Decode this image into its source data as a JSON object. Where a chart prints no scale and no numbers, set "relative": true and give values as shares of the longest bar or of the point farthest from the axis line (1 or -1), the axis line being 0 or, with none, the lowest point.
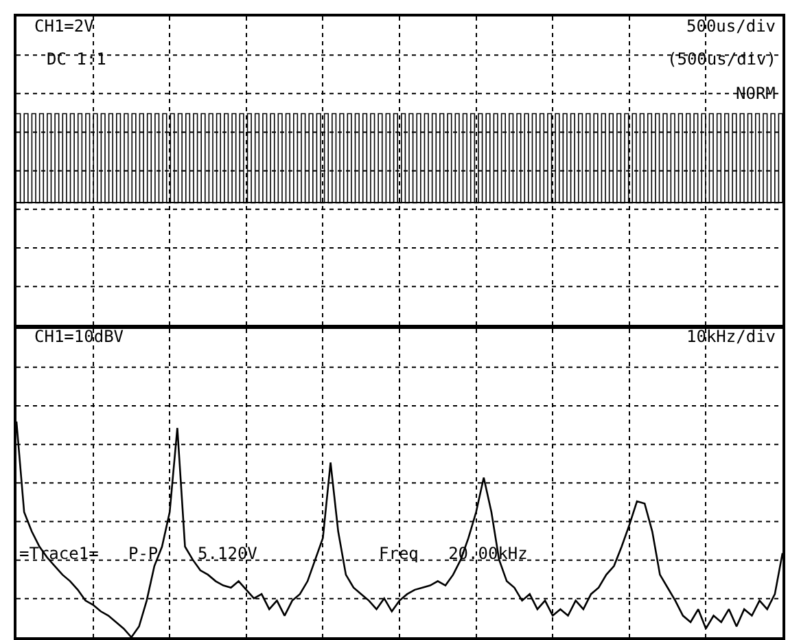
{
  "chart_data": [
    {
      "type": "step",
      "relative": true,
      "grid": true,
      "tick_labels": false,
      "color": "#000000",
      "annotations": [
        "CH1=2V",
        "DC 1:1",
        "500us/div",
        "(500us/div)",
        "NORM"
      ],
      "categories": [
        null,
        null,
        null,
        null,
        null,
        null,
        null,
        null,
        null,
        null,
        null,
        null,
        null,
        null,
        null,
        null,
        null,
        null,
        null,
        null,
        null,
        null,
        null,
        null,
        null,
        null,
        null,
        null,
        null,
        null,
        null,
        null,
        null,
        null,
        null,
        null,
        null,
        null,
        null,
        null,
        null,
        null,
        null,
        null,
        null,
        null,
        null,
        null,
        null,
        null,
        null,
        null,
        null,
        null,
        null,
        null,
        null,
        null,
        null,
        null,
        null,
        null,
        null,
        null,
        null,
        null,
        null,
        null,
        null,
        null,
        null,
        null,
        null,
        null,
        null,
        null,
        null,
        null,
        null,
        null,
        null,
        null,
        null,
        null,
        null,
        null,
        null,
        null,
        null,
        null,
        null,
        null,
        null,
        null,
        null,
        null,
        null,
        null,
        null,
        null,
        null,
        null,
        null,
        null,
        null,
        null,
        null,
        null,
        null,
        null,
        null,
        null,
        null,
        null,
        null,
        null,
        null,
        null,
        null,
        null,
        null,
        null,
        null,
        null,
        null,
        null,
        null,
        null,
        null,
        null,
        null,
        null,
        null,
        null,
        null,
        null,
        null,
        null,
        null,
        null,
        null,
        null,
        null,
        null,
        null,
        null,
        null,
        null,
        null,
        null,
        null,
        null,
        null,
        null,
        null,
        null,
        null,
        null,
        null,
        null,
        null,
        null,
        null,
        null,
        null,
        null,
        null,
        null,
        null,
        null,
        null,
        null,
        null,
        null,
        null,
        null,
        null,
        null,
        null,
        null,
        null,
        null,
        null,
        null,
        null,
        null,
        null,
        null,
        null,
        null,
        null,
        null,
        null,
        null,
        null,
        null,
        null,
        null,
        null,
        null
      ],
      "values": [
        1,
        0,
        1,
        0,
        1,
        0,
        1,
        0,
        1,
        0,
        1,
        0,
        1,
        0,
        1,
        0,
        1,
        0,
        1,
        0,
        1,
        0,
        1,
        0,
        1,
        0,
        1,
        0,
        1,
        0,
        1,
        0,
        1,
        0,
        1,
        0,
        1,
        0,
        1,
        0,
        1,
        0,
        1,
        0,
        1,
        0,
        1,
        0,
        1,
        0,
        1,
        0,
        1,
        0,
        1,
        0,
        1,
        0,
        1,
        0,
        1,
        0,
        1,
        0,
        1,
        0,
        1,
        0,
        1,
        0,
        1,
        0,
        1,
        0,
        1,
        0,
        1,
        0,
        1,
        0,
        1,
        0,
        1,
        0,
        1,
        0,
        1,
        0,
        1,
        0,
        1,
        0,
        1,
        0,
        1,
        0,
        1,
        0,
        1,
        0,
        1,
        0,
        1,
        0,
        1,
        0,
        1,
        0,
        1,
        0,
        1,
        0,
        1,
        0,
        1,
        0,
        1,
        0,
        1,
        0,
        1,
        0,
        1,
        0,
        1,
        0,
        1,
        0,
        1,
        0,
        1,
        0,
        1,
        0,
        1,
        0,
        1,
        0,
        1,
        0,
        1,
        0,
        1,
        0,
        1,
        0,
        1,
        0,
        1,
        0,
        1,
        0,
        1,
        0,
        1,
        0,
        1,
        0,
        1,
        0,
        1,
        0,
        1,
        0,
        1,
        0,
        1,
        0,
        1,
        0,
        1,
        0,
        1,
        0,
        1,
        0,
        1,
        0,
        1,
        0,
        1,
        0,
        1,
        0,
        1,
        0,
        1,
        0,
        1,
        0,
        1,
        0,
        1,
        0,
        1,
        0,
        1,
        0,
        1,
        0
      ]
    },
    {
      "type": "line",
      "relative": true,
      "grid": true,
      "tick_labels": false,
      "color": "#000000",
      "annotations": [
        "CH1=10dBV",
        "10kHz/div",
        "=Trace1=   P-P    5.120V",
        "Freq   20.00kHz"
      ],
      "categories": [
        null,
        null,
        null,
        null,
        null,
        null,
        null,
        null,
        null,
        null,
        null,
        null,
        null,
        null,
        null,
        null,
        null,
        null,
        null,
        null,
        null,
        null,
        null,
        null,
        null,
        null,
        null,
        null,
        null,
        null,
        null,
        null,
        null,
        null,
        null,
        null,
        null,
        null,
        null,
        null,
        null,
        null,
        null,
        null,
        null,
        null,
        null,
        null,
        null,
        null,
        null,
        null,
        null,
        null,
        null,
        null,
        null,
        null,
        null,
        null,
        null,
        null,
        null,
        null,
        null,
        null,
        null,
        null,
        null,
        null,
        null,
        null,
        null,
        null,
        null,
        null,
        null,
        null,
        null,
        null,
        null,
        null,
        null,
        null,
        null,
        null,
        null,
        null,
        null,
        null,
        null,
        null,
        null,
        null,
        null,
        null,
        null,
        null,
        null,
        null,
        null
      ],
      "values": [
        1.0,
        0.58,
        0.49,
        0.42,
        0.37,
        0.33,
        0.29,
        0.26,
        0.22,
        0.17,
        0.15,
        0.12,
        0.1,
        0.07,
        0.04,
        0.0,
        0.05,
        0.17,
        0.33,
        0.42,
        0.58,
        0.97,
        0.42,
        0.36,
        0.31,
        0.29,
        0.26,
        0.24,
        0.23,
        0.26,
        0.22,
        0.18,
        0.2,
        0.13,
        0.17,
        0.1,
        0.17,
        0.2,
        0.26,
        0.36,
        0.46,
        0.81,
        0.49,
        0.29,
        0.23,
        0.2,
        0.17,
        0.13,
        0.18,
        0.12,
        0.17,
        0.2,
        0.22,
        0.23,
        0.24,
        0.26,
        0.24,
        0.29,
        0.36,
        0.46,
        0.58,
        0.74,
        0.58,
        0.36,
        0.26,
        0.23,
        0.17,
        0.2,
        0.13,
        0.17,
        0.1,
        0.13,
        0.1,
        0.17,
        0.13,
        0.2,
        0.23,
        0.29,
        0.33,
        0.42,
        0.52,
        0.63,
        0.62,
        0.49,
        0.29,
        0.23,
        0.17,
        0.1,
        0.07,
        0.13,
        0.04,
        0.1,
        0.07,
        0.13,
        0.05,
        0.13,
        0.1,
        0.17,
        0.13,
        0.2,
        0.39
      ]
    }
  ]
}
